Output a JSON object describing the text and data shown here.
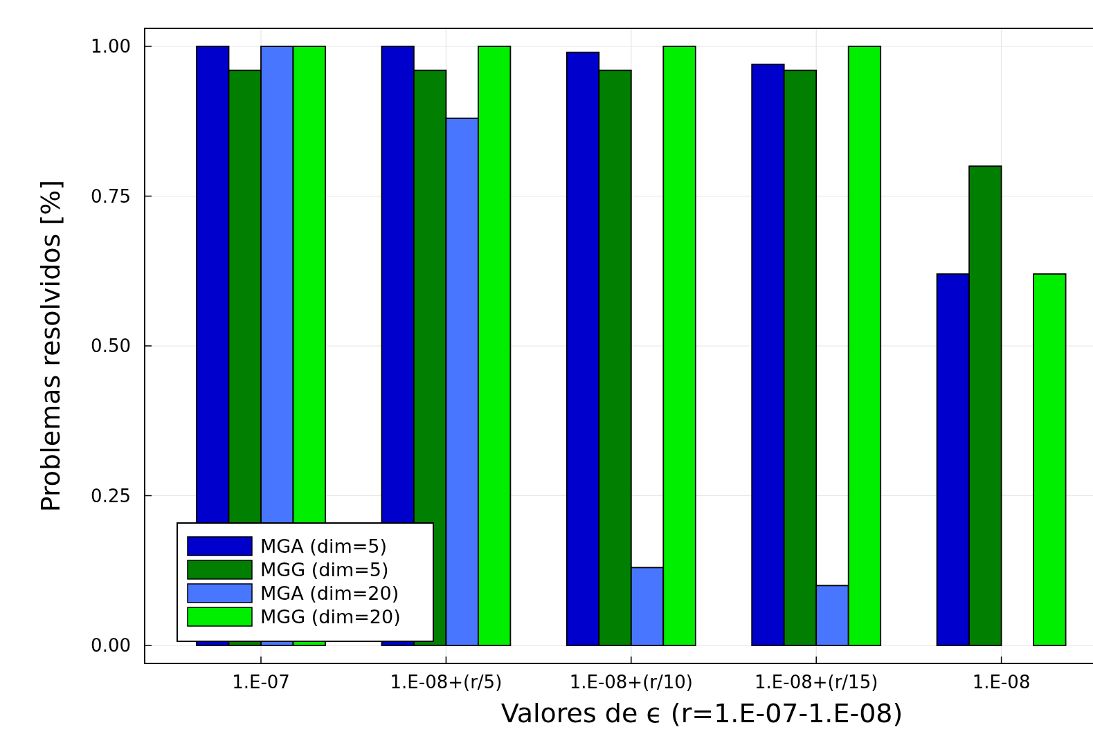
{
  "chart_data": {
    "type": "bar",
    "xlabel": "Valores de ϵ (r=1.E-07-1.E-08)",
    "ylabel": "Problemas resolvidos [%]",
    "categories": [
      "1.E-07",
      "1.E-08+(r/5)",
      "1.E-08+(r/10)",
      "1.E-08+(r/15)",
      "1.E-08"
    ],
    "series": [
      {
        "name": "MGA (dim=5)",
        "color": "#0000cd",
        "values": [
          1.0,
          1.0,
          0.99,
          0.97,
          0.62
        ]
      },
      {
        "name": "MGG (dim=5)",
        "color": "#007f00",
        "values": [
          0.96,
          0.96,
          0.96,
          0.96,
          0.8
        ]
      },
      {
        "name": "MGA (dim=20)",
        "color": "#4876ff",
        "values": [
          1.0,
          0.88,
          0.13,
          0.1,
          0
        ]
      },
      {
        "name": "MGG (dim=20)",
        "color": "#00ee00",
        "values": [
          1.0,
          1.0,
          1.0,
          1.0,
          0.62
        ]
      }
    ],
    "ylim": [
      -0.03,
      1.03
    ],
    "yticks": [
      {
        "value": 0,
        "label": "0.00"
      },
      {
        "value": 0.25,
        "label": "0.25"
      },
      {
        "value": 0.5,
        "label": "0.50"
      },
      {
        "value": 0.75,
        "label": "0.75"
      },
      {
        "value": 1,
        "label": "1.00"
      }
    ],
    "grid": true,
    "legend": "bottom left"
  }
}
